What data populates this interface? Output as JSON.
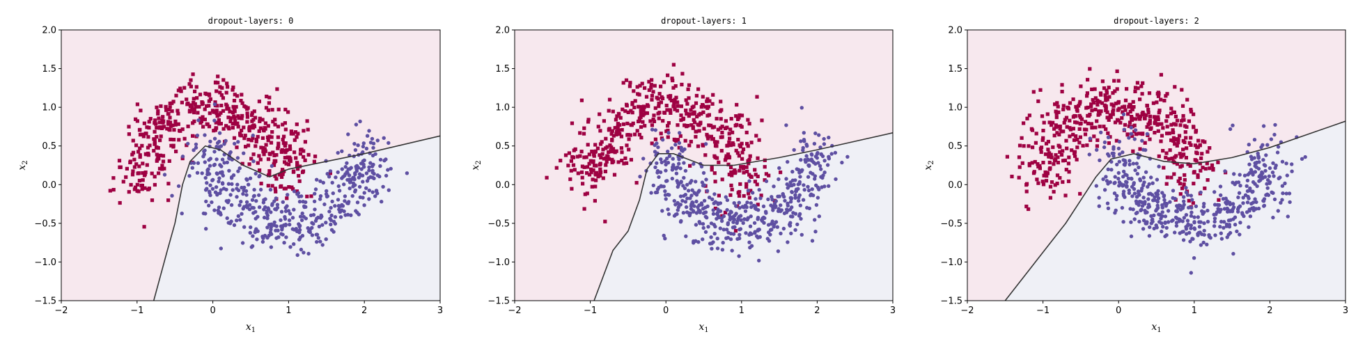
{
  "chart_data": [
    {
      "type": "scatter",
      "title": "dropout-layers: 0",
      "xlabel": "x",
      "xlabel_sub": "1",
      "ylabel": "x",
      "ylabel_sub": "2",
      "xlim": [
        -2,
        3
      ],
      "ylim": [
        -1.5,
        2.0
      ],
      "xticks": [
        -2,
        -1,
        0,
        1,
        2,
        3
      ],
      "yticks": [
        -1.5,
        -1.0,
        -0.5,
        0.0,
        0.5,
        1.0,
        1.5,
        2.0
      ],
      "xtick_labels": [
        "−2",
        "−1",
        "0",
        "1",
        "2",
        "3"
      ],
      "ytick_labels": [
        "−1.5",
        "−1.0",
        "−0.5",
        "0.0",
        "0.5",
        "1.0",
        "1.5",
        "2.0"
      ],
      "grid": false,
      "boundary": [
        [
          -0.78,
          -1.5
        ],
        [
          -0.6,
          -0.85
        ],
        [
          -0.5,
          -0.5
        ],
        [
          -0.4,
          0.0
        ],
        [
          -0.3,
          0.3
        ],
        [
          -0.1,
          0.5
        ],
        [
          0.1,
          0.45
        ],
        [
          0.4,
          0.25
        ],
        [
          0.75,
          0.1
        ],
        [
          1.0,
          0.2
        ],
        [
          1.5,
          0.3
        ],
        [
          2.0,
          0.4
        ],
        [
          3.0,
          0.63
        ]
      ],
      "seed": 11
    },
    {
      "type": "scatter",
      "title": "dropout-layers: 1",
      "xlabel": "x",
      "xlabel_sub": "1",
      "ylabel": "x",
      "ylabel_sub": "2",
      "xlim": [
        -2,
        3
      ],
      "ylim": [
        -1.5,
        2.0
      ],
      "xticks": [
        -2,
        -1,
        0,
        1,
        2,
        3
      ],
      "yticks": [
        -1.5,
        -1.0,
        -0.5,
        0.0,
        0.5,
        1.0,
        1.5,
        2.0
      ],
      "xtick_labels": [
        "−2",
        "−1",
        "0",
        "1",
        "2",
        "3"
      ],
      "ytick_labels": [
        "−1.5",
        "−1.0",
        "−0.5",
        "0.0",
        "0.5",
        "1.0",
        "1.5",
        "2.0"
      ],
      "grid": false,
      "boundary": [
        [
          -0.95,
          -1.5
        ],
        [
          -0.7,
          -0.85
        ],
        [
          -0.5,
          -0.6
        ],
        [
          -0.35,
          -0.2
        ],
        [
          -0.25,
          0.2
        ],
        [
          -0.1,
          0.4
        ],
        [
          0.1,
          0.4
        ],
        [
          0.5,
          0.25
        ],
        [
          0.9,
          0.25
        ],
        [
          1.5,
          0.35
        ],
        [
          2.0,
          0.45
        ],
        [
          3.0,
          0.67
        ]
      ],
      "seed": 23
    },
    {
      "type": "scatter",
      "title": "dropout-layers: 2",
      "xlabel": "x",
      "xlabel_sub": "1",
      "ylabel": "x",
      "ylabel_sub": "2",
      "xlim": [
        -2,
        3
      ],
      "ylim": [
        -1.5,
        2.0
      ],
      "xticks": [
        -2,
        -1,
        0,
        1,
        2,
        3
      ],
      "yticks": [
        -1.5,
        -1.0,
        -0.5,
        0.0,
        0.5,
        1.0,
        1.5,
        2.0
      ],
      "xtick_labels": [
        "−2",
        "−1",
        "0",
        "1",
        "2",
        "3"
      ],
      "ytick_labels": [
        "−1.5",
        "−1.0",
        "−0.5",
        "0.0",
        "0.5",
        "1.0",
        "1.5",
        "2.0"
      ],
      "grid": false,
      "boundary": [
        [
          -1.5,
          -1.5
        ],
        [
          -1.1,
          -1.0
        ],
        [
          -0.7,
          -0.5
        ],
        [
          -0.5,
          -0.2
        ],
        [
          -0.3,
          0.1
        ],
        [
          -0.1,
          0.33
        ],
        [
          0.2,
          0.4
        ],
        [
          0.6,
          0.3
        ],
        [
          1.0,
          0.27
        ],
        [
          1.5,
          0.35
        ],
        [
          2.0,
          0.48
        ],
        [
          3.0,
          0.82
        ]
      ],
      "seed": 37
    }
  ],
  "colors": {
    "class_0": "#9e0142",
    "class_1": "#5e4fa2",
    "region_0": "#f7e8ee",
    "region_1": "#eff0f6",
    "boundary": "#333333",
    "axes": "#000000"
  },
  "markers": {
    "class_0": "square",
    "class_1": "circle"
  },
  "dataset": {
    "points_per_class": 500,
    "noise": 0.2
  }
}
